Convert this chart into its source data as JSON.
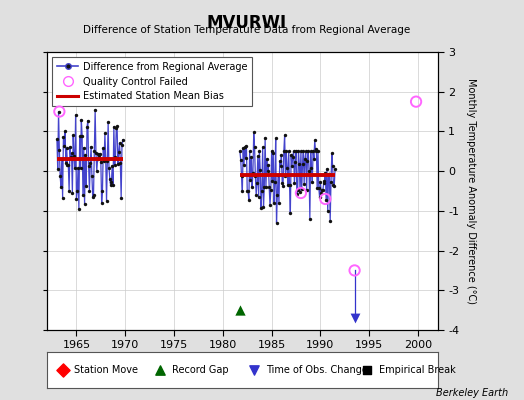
{
  "title": "MVURWI",
  "subtitle": "Difference of Station Temperature Data from Regional Average",
  "ylabel_right": "Monthly Temperature Anomaly Difference (°C)",
  "xlim": [
    1962,
    2002
  ],
  "ylim": [
    -4,
    3
  ],
  "yticks": [
    -4,
    -3,
    -2,
    -1,
    0,
    1,
    2,
    3
  ],
  "xticks": [
    1965,
    1970,
    1975,
    1980,
    1985,
    1990,
    1995,
    2000
  ],
  "background_color": "#e0e0e0",
  "plot_bg_color": "#ffffff",
  "p1_bias": 0.3,
  "p2_bias": -0.1,
  "p1_x_start": 1963.0,
  "p1_x_end": 1969.75,
  "p2_x_start": 1981.75,
  "p2_x_end": 1991.5,
  "line_color": "#4444cc",
  "dot_color": "#111111",
  "bias_color": "#cc0000",
  "qc_color": "#ff66ff",
  "gap_color": "#006600",
  "obs_color": "#3333cc",
  "credit": "Berkeley Earth",
  "record_gap_x": 1981.75,
  "record_gap_y": -3.5,
  "time_obs_x": 1993.5,
  "time_obs_y_top": -2.5,
  "time_obs_y_bot": -3.7
}
